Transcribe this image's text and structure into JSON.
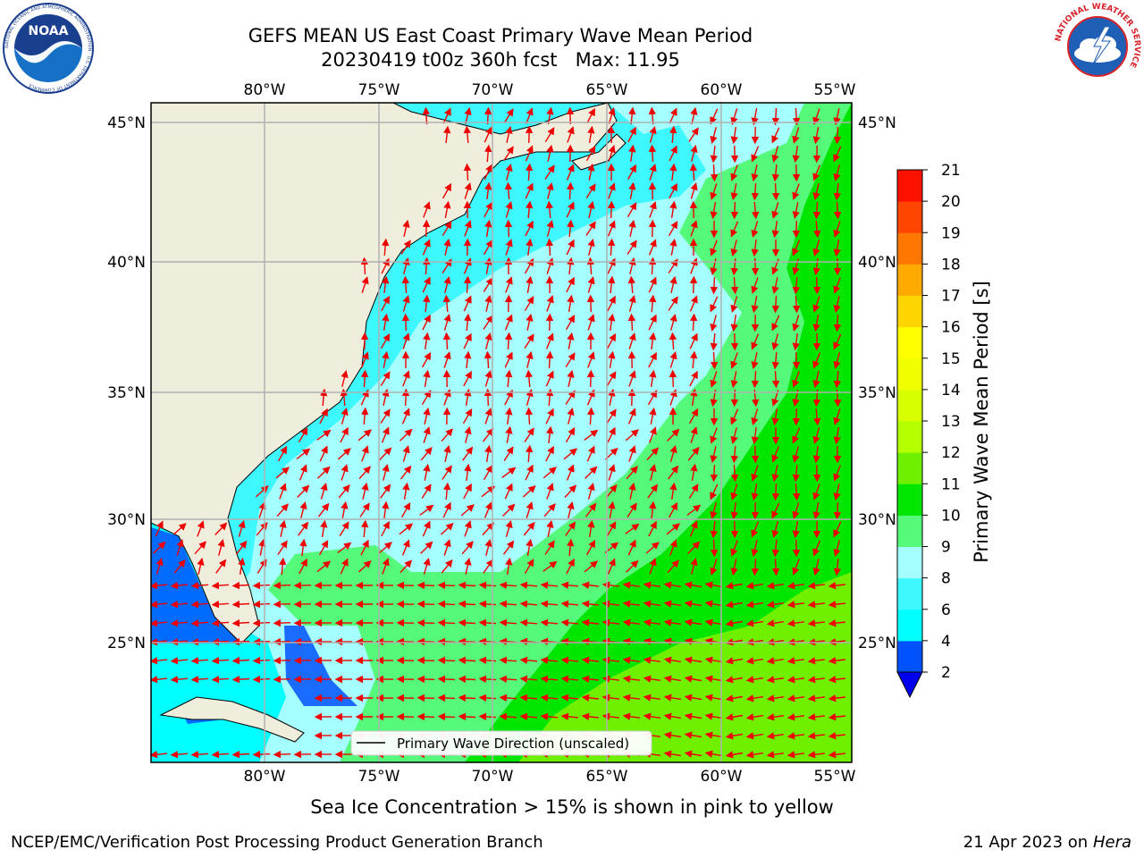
{
  "title_line1": "GEFS MEAN US East Coast Primary Wave Mean Period",
  "title_line2": "20230419 t00z 360h fcst   Max: 11.95",
  "map": {
    "lon_labels": [
      "80°W",
      "75°W",
      "70°W",
      "65°W",
      "60°W",
      "55°W"
    ],
    "lat_labels": [
      "45°N",
      "40°N",
      "35°N",
      "30°N",
      "25°N"
    ],
    "legend_label": "Primary Wave Direction (unscaled)",
    "colors": {
      "land": "#efeddc",
      "arrow": "#ee0000",
      "grid": "#b0b0b0"
    }
  },
  "colorbar": {
    "label": "Primary Wave Mean Period [s]",
    "ticks": [
      "2",
      "4",
      "6",
      "8",
      "9",
      "10",
      "11",
      "12",
      "13",
      "14",
      "15",
      "16",
      "17",
      "18",
      "19",
      "20",
      "21"
    ],
    "colors": [
      "#0052ff",
      "#00ffff",
      "#3df8ff",
      "#a5ffff",
      "#55fa7a",
      "#00e600",
      "#6ef000",
      "#b4ff00",
      "#d8ff00",
      "#f0ff00",
      "#ffff00",
      "#ffd500",
      "#ffaa00",
      "#ff7700",
      "#ff4500",
      "#ff1100"
    ],
    "under_color": "#0000ee"
  },
  "caption": "Sea Ice Concentration > 15% is shown in pink to yellow",
  "footer_left": "NCEP/EMC/Verification Post Processing Product Generation Branch",
  "footer_date": "21 Apr 2023 on",
  "footer_host": "Hera",
  "logos": {
    "noaa_text": "NOAA",
    "noaa_ring": "NATIONAL OCEANIC AND ATMOSPHERIC ADMINISTRATION · U.S. DEPARTMENT OF COMMERCE",
    "nws_ring": "NATIONAL WEATHER SERVICE"
  }
}
